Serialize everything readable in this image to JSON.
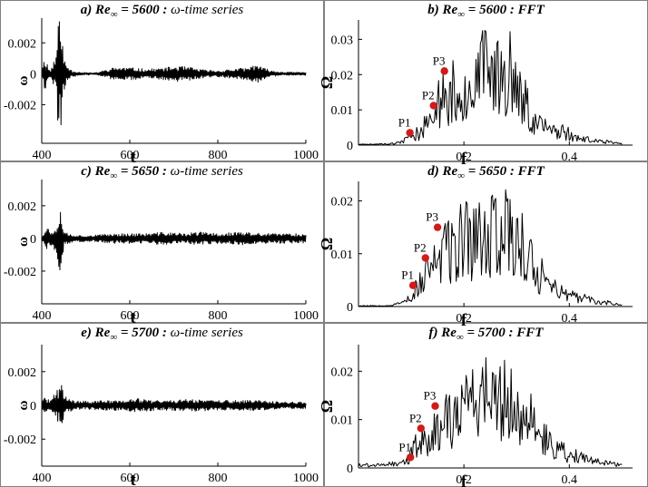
{
  "figure": {
    "colors": {
      "border": "#808080",
      "line": "#000000",
      "marker": "#d11a1a"
    }
  },
  "chart_data": [
    {
      "id": "a",
      "type": "line",
      "kind": "time",
      "title_prefix": "a) Re",
      "title_sub": "∞",
      "title_value": " = 5600 : ",
      "title_suffix": "ω-time series",
      "xlabel": "t",
      "ylabel": "ω",
      "xlim": [
        400,
        1000
      ],
      "ylim": [
        -0.0045,
        0.0036
      ],
      "xticks": [
        400,
        600,
        800,
        1000
      ],
      "xtick_labels": [
        "400",
        "600",
        "800",
        "1000"
      ],
      "yticks": [
        0.002,
        0,
        -0.002
      ],
      "ytick_labels": [
        "0.002",
        "0",
        "-0.002"
      ],
      "series": [
        {
          "name": "ω(t)",
          "x_start": 400,
          "x_end": 1000,
          "n": 480,
          "seed": 11,
          "envelope": [
            [
              400,
              8e-05
            ],
            [
              402,
              0.0006
            ],
            [
              408,
              0.0012
            ],
            [
              415,
              0.0004
            ],
            [
              420,
              0.0002
            ],
            [
              425,
              0.0007
            ],
            [
              432,
              0.0012
            ],
            [
              437,
              0.0035
            ],
            [
              442,
              0.0034
            ],
            [
              445,
              0.0042
            ],
            [
              448,
              0.0015
            ],
            [
              455,
              0.0006
            ],
            [
              470,
              0.0002
            ],
            [
              490,
              0.0001
            ],
            [
              520,
              5e-05
            ],
            [
              540,
              0.0002
            ],
            [
              570,
              0.00045
            ],
            [
              600,
              0.0004
            ],
            [
              640,
              0.0003
            ],
            [
              680,
              0.0004
            ],
            [
              710,
              0.0005
            ],
            [
              740,
              0.0004
            ],
            [
              770,
              0.00025
            ],
            [
              800,
              0.0002
            ],
            [
              830,
              0.0003
            ],
            [
              870,
              0.0004
            ],
            [
              888,
              0.0007
            ],
            [
              900,
              0.0004
            ],
            [
              930,
              0.00015
            ],
            [
              970,
              0.0001
            ],
            [
              1000,
              0.0001
            ]
          ]
        }
      ]
    },
    {
      "id": "b",
      "type": "line",
      "kind": "fft",
      "title_prefix": "b) Re",
      "title_sub": "∞",
      "title_value": " = 5600 : ",
      "title_suffix": "FFT",
      "xlabel": "f",
      "ylabel": "Ω",
      "xlim": [
        0,
        0.52
      ],
      "ylim": [
        0,
        0.0355
      ],
      "xticks": [
        0.2,
        0.4
      ],
      "xtick_labels": [
        "0.2",
        "0.4"
      ],
      "yticks": [
        0.03,
        0.02,
        0.01,
        0
      ],
      "ytick_labels": [
        "0.03",
        "0.02",
        "0.01",
        "0"
      ],
      "series": [
        {
          "name": "Ω(f)",
          "x_end": 0.5,
          "n": 240,
          "seed": 23,
          "envelope": [
            [
              0,
              0.0003
            ],
            [
              0.06,
              0.0005
            ],
            [
              0.08,
              0.001
            ],
            [
              0.095,
              0.003
            ],
            [
              0.105,
              0.004
            ],
            [
              0.12,
              0.006
            ],
            [
              0.14,
              0.012
            ],
            [
              0.16,
              0.02
            ],
            [
              0.18,
              0.022
            ],
            [
              0.2,
              0.024
            ],
            [
              0.22,
              0.028
            ],
            [
              0.25,
              0.031
            ],
            [
              0.27,
              0.033
            ],
            [
              0.29,
              0.03
            ],
            [
              0.31,
              0.02
            ],
            [
              0.33,
              0.012
            ],
            [
              0.35,
              0.008
            ],
            [
              0.38,
              0.006
            ],
            [
              0.42,
              0.003
            ],
            [
              0.46,
              0.0015
            ],
            [
              0.5,
              0.0006
            ]
          ]
        }
      ],
      "points": [
        {
          "label": "P1",
          "f": 0.0975,
          "value": 0.0035
        },
        {
          "label": "P2",
          "f": 0.1425,
          "value": 0.0112
        },
        {
          "label": "P3",
          "f": 0.163,
          "value": 0.021
        }
      ]
    },
    {
      "id": "c",
      "type": "line",
      "kind": "time",
      "title_prefix": "c) Re",
      "title_sub": "∞",
      "title_value": " = 5650 : ",
      "title_suffix": "ω-time series",
      "xlabel": "t",
      "ylabel": "ω",
      "xlim": [
        400,
        1000
      ],
      "ylim": [
        -0.004,
        0.0036
      ],
      "xticks": [
        400,
        600,
        800,
        1000
      ],
      "xtick_labels": [
        "400",
        "600",
        "800",
        "1000"
      ],
      "yticks": [
        0.002,
        0,
        -0.002
      ],
      "ytick_labels": [
        "0.002",
        "0",
        "-0.002"
      ],
      "series": [
        {
          "name": "ω(t)",
          "x_start": 400,
          "x_end": 1000,
          "n": 480,
          "seed": 37,
          "envelope": [
            [
              400,
              0.0001
            ],
            [
              405,
              0.0005
            ],
            [
              412,
              0.0008
            ],
            [
              420,
              0.0004
            ],
            [
              428,
              0.0007
            ],
            [
              435,
              0.0009
            ],
            [
              440,
              0.0024
            ],
            [
              446,
              0.0014
            ],
            [
              450,
              0.0006
            ],
            [
              460,
              0.0003
            ],
            [
              480,
              0.0002
            ],
            [
              520,
              0.0002
            ],
            [
              560,
              0.0003
            ],
            [
              600,
              0.0003
            ],
            [
              640,
              0.0003
            ],
            [
              680,
              0.0004
            ],
            [
              720,
              0.0003
            ],
            [
              760,
              0.0004
            ],
            [
              800,
              0.0003
            ],
            [
              850,
              0.0004
            ],
            [
              900,
              0.0003
            ],
            [
              950,
              0.0003
            ],
            [
              1000,
              0.0003
            ]
          ]
        }
      ]
    },
    {
      "id": "d",
      "type": "line",
      "kind": "fft",
      "title_prefix": "d) Re",
      "title_sub": "∞",
      "title_value": " = 5650 : ",
      "title_suffix": "FFT",
      "xlabel": "f",
      "ylabel": "Ω",
      "xlim": [
        0,
        0.52
      ],
      "ylim": [
        0,
        0.0237
      ],
      "xticks": [
        0.2,
        0.4
      ],
      "xtick_labels": [
        "0.2",
        "0.4"
      ],
      "yticks": [
        0.02,
        0.01,
        0
      ],
      "ytick_labels": [
        "0.02",
        "0.01",
        "0"
      ],
      "series": [
        {
          "name": "Ω(f)",
          "x_end": 0.5,
          "n": 240,
          "seed": 53,
          "envelope": [
            [
              0,
              0.0002
            ],
            [
              0.06,
              0.0003
            ],
            [
              0.08,
              0.0008
            ],
            [
              0.1,
              0.003
            ],
            [
              0.12,
              0.008
            ],
            [
              0.14,
              0.012
            ],
            [
              0.16,
              0.015
            ],
            [
              0.18,
              0.017
            ],
            [
              0.2,
              0.018
            ],
            [
              0.24,
              0.02
            ],
            [
              0.26,
              0.02
            ],
            [
              0.28,
              0.022
            ],
            [
              0.3,
              0.02
            ],
            [
              0.32,
              0.014
            ],
            [
              0.34,
              0.01
            ],
            [
              0.36,
              0.006
            ],
            [
              0.4,
              0.003
            ],
            [
              0.45,
              0.0015
            ],
            [
              0.5,
              0.0006
            ]
          ]
        }
      ],
      "points": [
        {
          "label": "P1",
          "f": 0.1035,
          "value": 0.004
        },
        {
          "label": "P2",
          "f": 0.127,
          "value": 0.0092
        },
        {
          "label": "P3",
          "f": 0.15,
          "value": 0.015
        }
      ]
    },
    {
      "id": "e",
      "type": "line",
      "kind": "time",
      "title_prefix": "e) Re",
      "title_sub": "∞",
      "title_value": " = 5700 : ",
      "title_suffix": "ω-time series",
      "xlabel": "t",
      "ylabel": "ω",
      "xlim": [
        400,
        1000
      ],
      "ylim": [
        -0.0036,
        0.0036
      ],
      "xticks": [
        400,
        600,
        800,
        1000
      ],
      "xtick_labels": [
        "400",
        "600",
        "800",
        "1000"
      ],
      "yticks": [
        0.002,
        0,
        -0.002
      ],
      "ytick_labels": [
        "0.002",
        "0",
        "-0.002"
      ],
      "series": [
        {
          "name": "ω(t)",
          "x_start": 400,
          "x_end": 1000,
          "n": 480,
          "seed": 71,
          "envelope": [
            [
              400,
              0.0001
            ],
            [
              403,
              0.0005
            ],
            [
              410,
              0.0004
            ],
            [
              418,
              0.0003
            ],
            [
              425,
              0.0005
            ],
            [
              432,
              0.0008
            ],
            [
              440,
              0.0011
            ],
            [
              444,
              0.0022
            ],
            [
              448,
              0.0009
            ],
            [
              455,
              0.0005
            ],
            [
              470,
              0.0003
            ],
            [
              500,
              0.00025
            ],
            [
              540,
              0.0003
            ],
            [
              580,
              0.0003
            ],
            [
              620,
              0.0004
            ],
            [
              660,
              0.0003
            ],
            [
              700,
              0.0003
            ],
            [
              740,
              0.0004
            ],
            [
              780,
              0.0003
            ],
            [
              820,
              0.0003
            ],
            [
              860,
              0.0003
            ],
            [
              900,
              0.0003
            ],
            [
              950,
              0.0002
            ],
            [
              1000,
              0.0002
            ]
          ]
        }
      ]
    },
    {
      "id": "f",
      "type": "line",
      "kind": "fft",
      "title_prefix": "f) Re",
      "title_sub": "∞",
      "title_value": " = 5700 : ",
      "title_suffix": "FFT",
      "xlabel": "f",
      "ylabel": "Ω",
      "xlim": [
        0,
        0.52
      ],
      "ylim": [
        0,
        0.0255
      ],
      "xticks": [
        0.2,
        0.4
      ],
      "xtick_labels": [
        "0.2",
        "0.4"
      ],
      "yticks": [
        0.02,
        0.01,
        0
      ],
      "ytick_labels": [
        "0.02",
        "0.01",
        "0"
      ],
      "series": [
        {
          "name": "Ω(f)",
          "x_end": 0.5,
          "n": 240,
          "seed": 89,
          "envelope": [
            [
              0,
              0.0008
            ],
            [
              0.05,
              0.001
            ],
            [
              0.08,
              0.0015
            ],
            [
              0.095,
              0.0025
            ],
            [
              0.11,
              0.008
            ],
            [
              0.13,
              0.009
            ],
            [
              0.14,
              0.012
            ],
            [
              0.16,
              0.014
            ],
            [
              0.18,
              0.016
            ],
            [
              0.2,
              0.019
            ],
            [
              0.22,
              0.02
            ],
            [
              0.24,
              0.021
            ],
            [
              0.26,
              0.022
            ],
            [
              0.28,
              0.021
            ],
            [
              0.3,
              0.02
            ],
            [
              0.32,
              0.016
            ],
            [
              0.34,
              0.012
            ],
            [
              0.36,
              0.008
            ],
            [
              0.38,
              0.006
            ],
            [
              0.4,
              0.004
            ],
            [
              0.45,
              0.002
            ],
            [
              0.5,
              0.0008
            ]
          ]
        }
      ],
      "points": [
        {
          "label": "P1",
          "f": 0.0985,
          "value": 0.0022
        },
        {
          "label": "P2",
          "f": 0.1185,
          "value": 0.0082
        },
        {
          "label": "P3",
          "f": 0.1455,
          "value": 0.0128
        }
      ]
    }
  ]
}
